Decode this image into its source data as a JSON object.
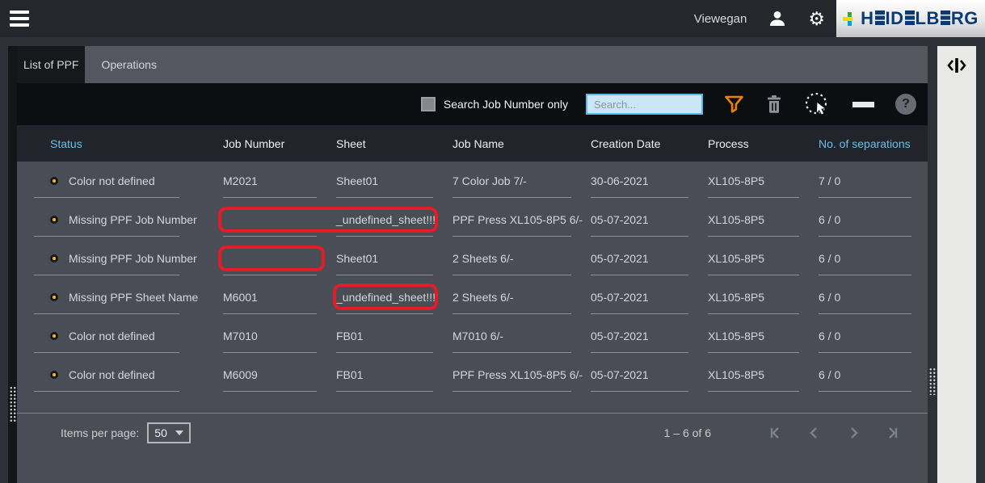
{
  "topbar": {
    "user_name": "Viewegan",
    "brand_logo_text": "HEIDELBERG",
    "icons": [
      "menu-icon",
      "user-icon",
      "gear-icon"
    ]
  },
  "tabs": [
    {
      "label": "List of PPF",
      "active": true
    },
    {
      "label": "Operations",
      "active": false
    }
  ],
  "toolbar": {
    "checkbox_label": "Search Job Number only",
    "checkbox_checked": false,
    "search_value": "",
    "search_placeholder": "Search...",
    "icons": [
      "filter-icon",
      "delete-icon",
      "select-jobs-icon",
      "more-options-icon",
      "help-icon"
    ]
  },
  "table": {
    "columns": [
      "Status",
      "Job Number",
      "Sheet",
      "Job Name",
      "Creation Date",
      "Process",
      "No. of separations"
    ],
    "status_icon": "warning-dot",
    "rows": [
      {
        "status": "Color not defined",
        "job_number": "M2021",
        "sheet": "Sheet01",
        "job_name": "7 Color Job 7/-",
        "creation_date": "30-06-2021",
        "process": "XL105-8P5",
        "separations": "7 / 0",
        "highlight": "none"
      },
      {
        "status": "Missing PPF Job Number",
        "job_number": "",
        "sheet": "_undefined_sheet!!!",
        "job_name": "PPF Press XL105-8P5 6/-",
        "creation_date": "05-07-2021",
        "process": "XL105-8P5",
        "separations": "6 / 0",
        "highlight": "job-number-and-sheet"
      },
      {
        "status": "Missing PPF Job Number",
        "job_number": "",
        "sheet": "Sheet01",
        "job_name": "2 Sheets 6/-",
        "creation_date": "05-07-2021",
        "process": "XL105-8P5",
        "separations": "6 / 0",
        "highlight": "job-number"
      },
      {
        "status": "Missing PPF Sheet Name",
        "job_number": "M6001",
        "sheet": "_undefined_sheet!!!",
        "job_name": "2 Sheets 6/-",
        "creation_date": "05-07-2021",
        "process": "XL105-8P5",
        "separations": "6 / 0",
        "highlight": "sheet"
      },
      {
        "status": "Color not defined",
        "job_number": "M7010",
        "sheet": "FB01",
        "job_name": "M7010 6/-",
        "creation_date": "05-07-2021",
        "process": "XL105-8P5",
        "separations": "6 / 0",
        "highlight": "none"
      },
      {
        "status": "Color not defined",
        "job_number": "M6009",
        "sheet": "FB01",
        "job_name": "PPF Press XL105-8P5 6/-",
        "creation_date": "05-07-2021",
        "process": "XL105-8P5",
        "separations": "6 / 0",
        "highlight": "none"
      }
    ]
  },
  "pagination": {
    "items_per_page_label": "Items per page:",
    "items_per_page_value": "50",
    "range_label": "1 – 6 of 6",
    "icons": [
      "first-page-icon",
      "previous-page-icon",
      "next-page-icon",
      "last-page-icon"
    ]
  },
  "colors": {
    "status_yellow": "#f3c301",
    "highlight_red": "#e11d25",
    "accent_orange": "#f08000",
    "header_link_blue": "#6fbfe8",
    "search_field_blue": "#cbe7f7",
    "brand_blue": "#0a3a74"
  }
}
